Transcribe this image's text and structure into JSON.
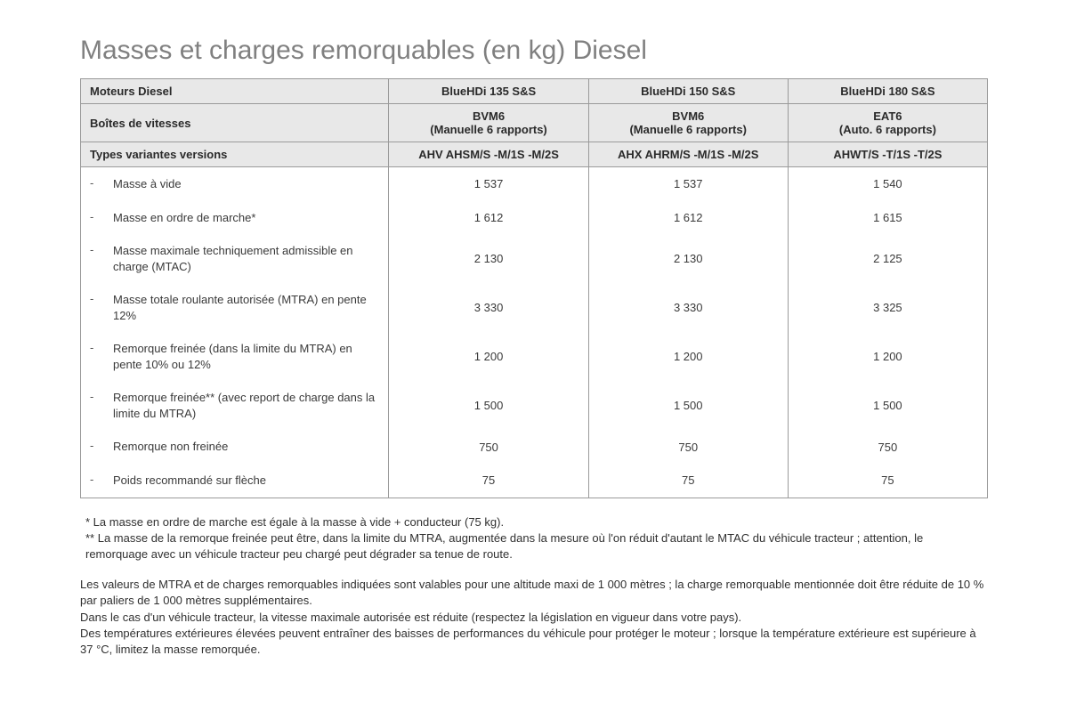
{
  "title": "Masses et charges remorquables (en kg) Diesel",
  "headers": {
    "engines_label": "Moteurs Diesel",
    "engines": [
      "BlueHDi 135 S&S",
      "BlueHDi 150 S&S",
      "BlueHDi 180 S&S"
    ],
    "gearbox_label": "Boîtes de vitesses",
    "gearboxes": [
      {
        "name": "BVM6",
        "sub": "(Manuelle 6 rapports)"
      },
      {
        "name": "BVM6",
        "sub": "(Manuelle 6 rapports)"
      },
      {
        "name": "EAT6",
        "sub": "(Auto. 6 rapports)"
      }
    ],
    "variants_label": "Types variantes versions",
    "variants": [
      "AHV AHSM/S -M/1S -M/2S",
      "AHX AHRM/S -M/1S -M/2S",
      "AHWT/S -T/1S -T/2S"
    ]
  },
  "rows": [
    {
      "label": "Masse à vide",
      "values": [
        "1 537",
        "1 537",
        "1 540"
      ]
    },
    {
      "label": "Masse en ordre de marche*",
      "values": [
        "1 612",
        "1 612",
        "1 615"
      ]
    },
    {
      "label": "Masse maximale techniquement admissible en charge (MTAC)",
      "values": [
        "2 130",
        "2 130",
        "2 125"
      ]
    },
    {
      "label": "Masse totale roulante autorisée (MTRA) en pente 12%",
      "values": [
        "3 330",
        "3 330",
        "3 325"
      ]
    },
    {
      "label": "Remorque freinée (dans la limite du MTRA) en pente 10% ou 12%",
      "values": [
        "1 200",
        "1 200",
        "1 200"
      ]
    },
    {
      "label": "Remorque freinée** (avec report de charge dans la limite du MTRA)",
      "values": [
        "1 500",
        "1 500",
        "1 500"
      ]
    },
    {
      "label": "Remorque non freinée",
      "values": [
        "750",
        "750",
        "750"
      ]
    },
    {
      "label": "Poids recommandé sur flèche",
      "values": [
        "75",
        "75",
        "75"
      ]
    }
  ],
  "footnotes": {
    "n1": "* La masse en ordre de marche est égale à la masse à vide + conducteur (75 kg).",
    "n2": "** La masse de la remorque freinée peut être, dans la limite du MTRA, augmentée dans la mesure où l'on réduit d'autant le MTAC du véhicule tracteur ; attention, le remorquage avec un véhicule tracteur peu chargé peut dégrader sa tenue de route."
  },
  "paragraph": {
    "p1": "Les valeurs de MTRA et de charges remorquables indiquées sont valables pour une altitude maxi de 1 000 mètres ; la charge remorquable mentionnée doit être réduite de 10 % par paliers de 1 000 mètres supplémentaires.",
    "p2": "Dans le cas d'un véhicule tracteur, la vitesse maximale autorisée est réduite (respectez la législation en vigueur dans votre pays).",
    "p3": "Des températures extérieures élevées peuvent entraîner des baisses de performances du véhicule pour protéger le moteur ; lorsque la température extérieure est supérieure à 37 °C, limitez la masse remorquée."
  },
  "style": {
    "header_bg": "#e8e8e8",
    "border_color": "#9a9a9a",
    "title_color": "#808080",
    "text_color": "#3a3a3a",
    "font_size_body": 13,
    "font_size_title": 30
  }
}
